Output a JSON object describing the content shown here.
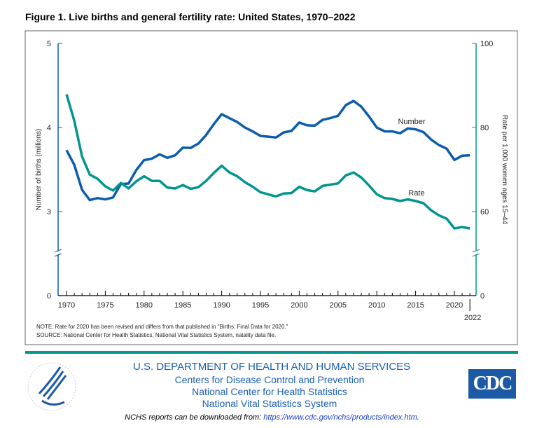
{
  "title": "Figure 1. Live births and general fertility rate: United States, 1970–2022",
  "chart_data": {
    "type": "line",
    "title": "Figure 1. Live births and general fertility rate: United States, 1970–2022",
    "xlabel": "",
    "ylabel": "Number of births (millions)",
    "y2label": "Rate per 1,000 women ages 15–44",
    "ylim": [
      0,
      5
    ],
    "y2lim": [
      0,
      100
    ],
    "yticks": [
      "0",
      "3",
      "4",
      "5"
    ],
    "y2ticks": [
      "0",
      "60",
      "80",
      "100"
    ],
    "xticks": [
      "1970",
      "1975",
      "1980",
      "1985",
      "1990",
      "1995",
      "2000",
      "2005",
      "2010",
      "2015",
      "2020"
    ],
    "xtick_extra": "2022",
    "x": [
      1970,
      1971,
      1972,
      1973,
      1974,
      1975,
      1976,
      1977,
      1978,
      1979,
      1980,
      1981,
      1982,
      1983,
      1984,
      1985,
      1986,
      1987,
      1988,
      1989,
      1990,
      1991,
      1992,
      1993,
      1994,
      1995,
      1996,
      1997,
      1998,
      1999,
      2000,
      2001,
      2002,
      2003,
      2004,
      2005,
      2006,
      2007,
      2008,
      2009,
      2010,
      2011,
      2012,
      2013,
      2014,
      2015,
      2016,
      2017,
      2018,
      2019,
      2020,
      2021,
      2022
    ],
    "series": [
      {
        "name": "Number",
        "color": "#0b5cad",
        "axis": "left",
        "values": [
          3.731,
          3.556,
          3.258,
          3.137,
          3.16,
          3.144,
          3.168,
          3.327,
          3.333,
          3.494,
          3.612,
          3.629,
          3.681,
          3.639,
          3.669,
          3.761,
          3.757,
          3.809,
          3.91,
          4.041,
          4.158,
          4.111,
          4.065,
          4.0,
          3.953,
          3.9,
          3.891,
          3.881,
          3.942,
          3.959,
          4.059,
          4.026,
          4.022,
          4.09,
          4.112,
          4.138,
          4.266,
          4.316,
          4.248,
          4.131,
          3.999,
          3.954,
          3.953,
          3.932,
          3.988,
          3.978,
          3.946,
          3.856,
          3.792,
          3.748,
          3.614,
          3.664,
          3.668
        ]
      },
      {
        "name": "Rate",
        "color": "#00958f",
        "axis": "right",
        "values": [
          87.9,
          81.6,
          73.1,
          68.8,
          67.8,
          66.0,
          65.0,
          66.8,
          65.5,
          67.2,
          68.4,
          67.3,
          67.3,
          65.7,
          65.5,
          66.3,
          65.4,
          65.8,
          67.3,
          69.2,
          70.9,
          69.3,
          68.4,
          67.0,
          65.9,
          64.6,
          64.1,
          63.6,
          64.3,
          64.4,
          65.9,
          65.1,
          64.8,
          66.1,
          66.4,
          66.7,
          68.6,
          69.3,
          68.1,
          66.2,
          64.1,
          63.2,
          63.0,
          62.5,
          62.9,
          62.5,
          62.0,
          60.3,
          59.1,
          58.3,
          56.0,
          56.3,
          56.0
        ]
      }
    ]
  },
  "notes": {
    "note": "NOTE: Rate for 2020 has been revised and differs from that published in \"Births: Final Data for 2020.\"",
    "source": "SOURCE: National Center for Health Statistics, National Vital Statistics System, natality data file."
  },
  "footer": {
    "dept": "U.S. DEPARTMENT OF HEALTH AND HUMAN SERVICES",
    "line1": "Centers for Disease Control and Prevention",
    "line2": "National Center for Health Statistics",
    "line3": "National Vital Statistics System",
    "download_text": "NCHS reports can be downloaded from: ",
    "download_url": "https://www.cdc.gov/nchs/products/index.htm",
    "cdc_logo": "CDC",
    "hhs_seal": "DEPARTMENT OF HEALTH & HUMAN SERVICES · USA"
  }
}
